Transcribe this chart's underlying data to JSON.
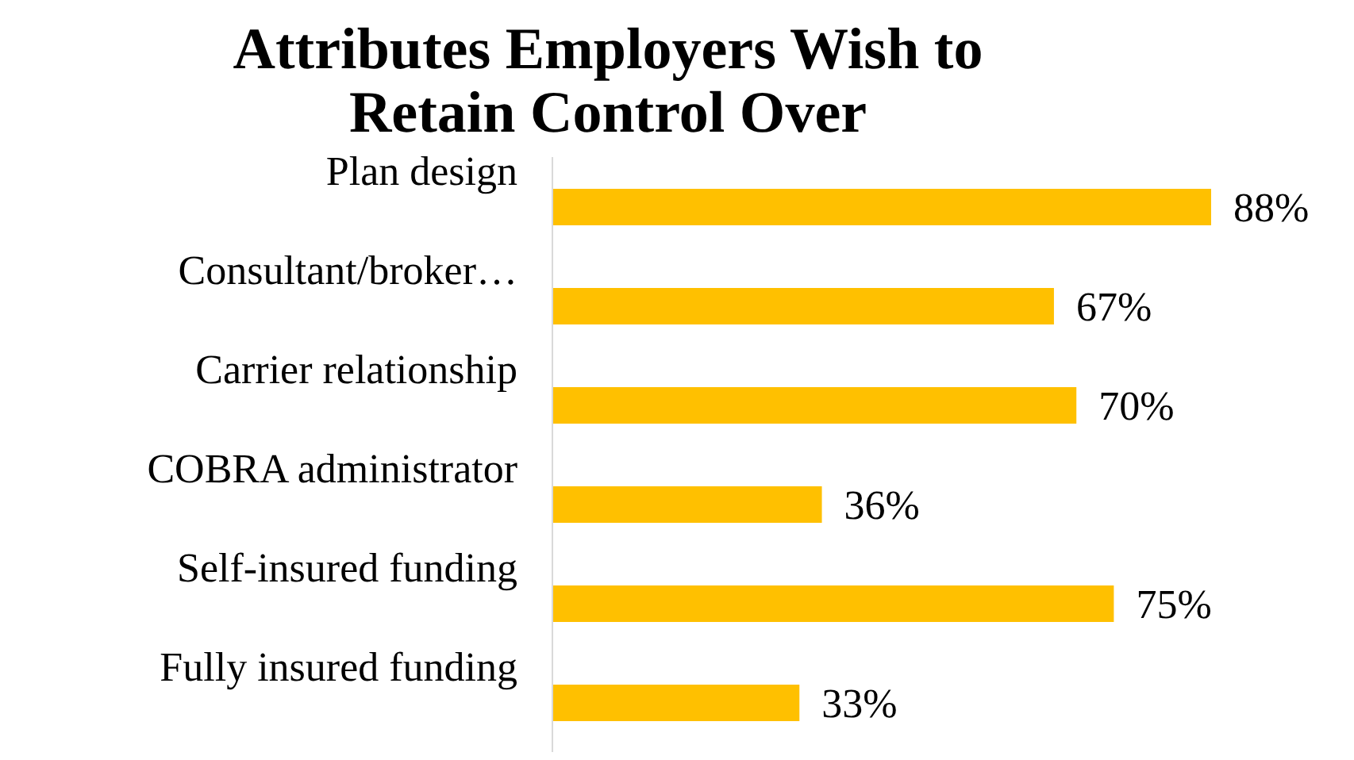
{
  "chart_data": {
    "type": "bar",
    "orientation": "horizontal",
    "title": "Attributes Employers Wish to Retain Control Over",
    "categories": [
      "Plan design",
      "Consultant/broker…",
      "Carrier relationship",
      "COBRA administrator",
      "Self-insured funding",
      "Fully insured funding"
    ],
    "values": [
      88,
      67,
      70,
      36,
      75,
      33
    ],
    "value_labels": [
      "88%",
      "67%",
      "70%",
      "36%",
      "75%",
      "33%"
    ],
    "color": "#ffc000",
    "grid": false,
    "legend": false
  }
}
